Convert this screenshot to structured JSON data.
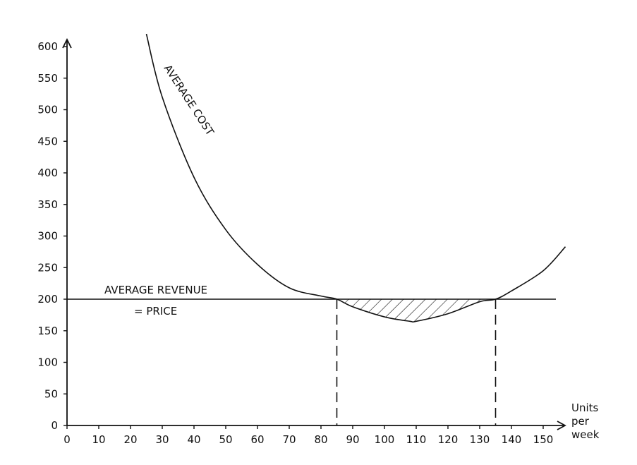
{
  "chart_data": {
    "type": "line",
    "title": "",
    "xlabel": [
      "Units",
      "per",
      "week"
    ],
    "ylabel": "",
    "xlim": [
      0,
      155
    ],
    "ylim": [
      0,
      610
    ],
    "x_ticks": [
      "0",
      "10",
      "20",
      "30",
      "40",
      "50",
      "60",
      "70",
      "80",
      "90",
      "100",
      "110",
      "120",
      "130",
      "140",
      "150"
    ],
    "y_ticks": [
      "0",
      "50",
      "100",
      "150",
      "200",
      "250",
      "300",
      "350",
      "400",
      "450",
      "500",
      "550",
      "600"
    ],
    "series": [
      {
        "name": "AVERAGE COST",
        "style": "curve",
        "x": [
          25,
          30,
          40,
          50,
          60,
          70,
          80,
          85,
          90,
          100,
          108,
          110,
          120,
          130,
          135,
          140,
          150,
          157
        ],
        "y": [
          620,
          520,
          393,
          310,
          255,
          218,
          205,
          200,
          188,
          172,
          165,
          165,
          177,
          196,
          200,
          213,
          245,
          283
        ]
      },
      {
        "name": "AVERAGE REVENUE = PRICE",
        "style": "horizontal",
        "x": [
          0,
          154
        ],
        "y": [
          200,
          200
        ]
      }
    ],
    "annotations": {
      "average_cost_label": "AVERAGE COST",
      "average_revenue_label": "AVERAGE REVENUE",
      "price_label": "= PRICE"
    },
    "dashed_verticals": [
      85,
      135
    ],
    "shaded_region": {
      "x_from": 85,
      "x_to": 135,
      "between": [
        "AVERAGE REVENUE = PRICE",
        "AVERAGE COST"
      ],
      "pattern": "hatched"
    },
    "grid": false,
    "legend": "none"
  }
}
